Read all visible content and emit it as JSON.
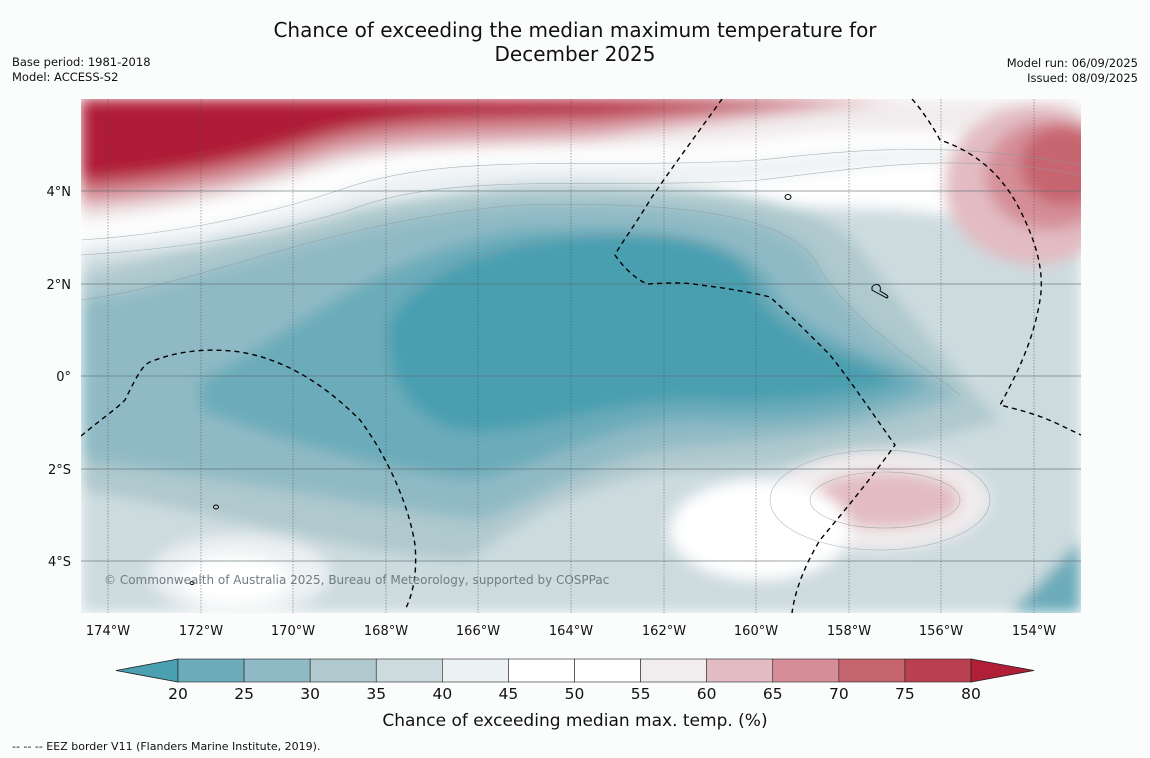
{
  "title": {
    "line1": "Chance of exceeding the median maximum temperature for",
    "line2": "December 2025"
  },
  "meta_left": {
    "base_period": "Base period: 1981-2018",
    "model": "Model: ACCESS-S2"
  },
  "meta_right": {
    "model_run": "Model run: 06/09/2025",
    "issued": "Issued: 08/09/2025"
  },
  "map": {
    "lat_labels": [
      "4°N",
      "2°N",
      "0°",
      "2°S",
      "4°S"
    ],
    "lon_labels": [
      "174°W",
      "172°W",
      "170°W",
      "168°W",
      "166°W",
      "164°W",
      "162°W",
      "160°W",
      "158°W",
      "156°W",
      "154°W"
    ],
    "copyright": "© Commonwealth of Australia 2025, Bureau of Meteorology, supported by COSPPac"
  },
  "colorbar": {
    "ticks": [
      "20",
      "25",
      "30",
      "35",
      "40",
      "45",
      "50",
      "55",
      "60",
      "65",
      "70",
      "75",
      "80"
    ],
    "colors": [
      "#4a9fb0",
      "#6cacba",
      "#8fbac5",
      "#afc9ce",
      "#cddbdf",
      "#ecf1f3",
      "#ffffff",
      "#ffffff",
      "#f1eced",
      "#e2bcc2",
      "#d58e97",
      "#c7656f",
      "#b8404f",
      "#b01e38"
    ],
    "title": "Chance of exceeding median max. temp. (%)"
  },
  "footnote": "--  --  -- EEZ border V11 (Flanders Marine Institute, 2019)."
}
